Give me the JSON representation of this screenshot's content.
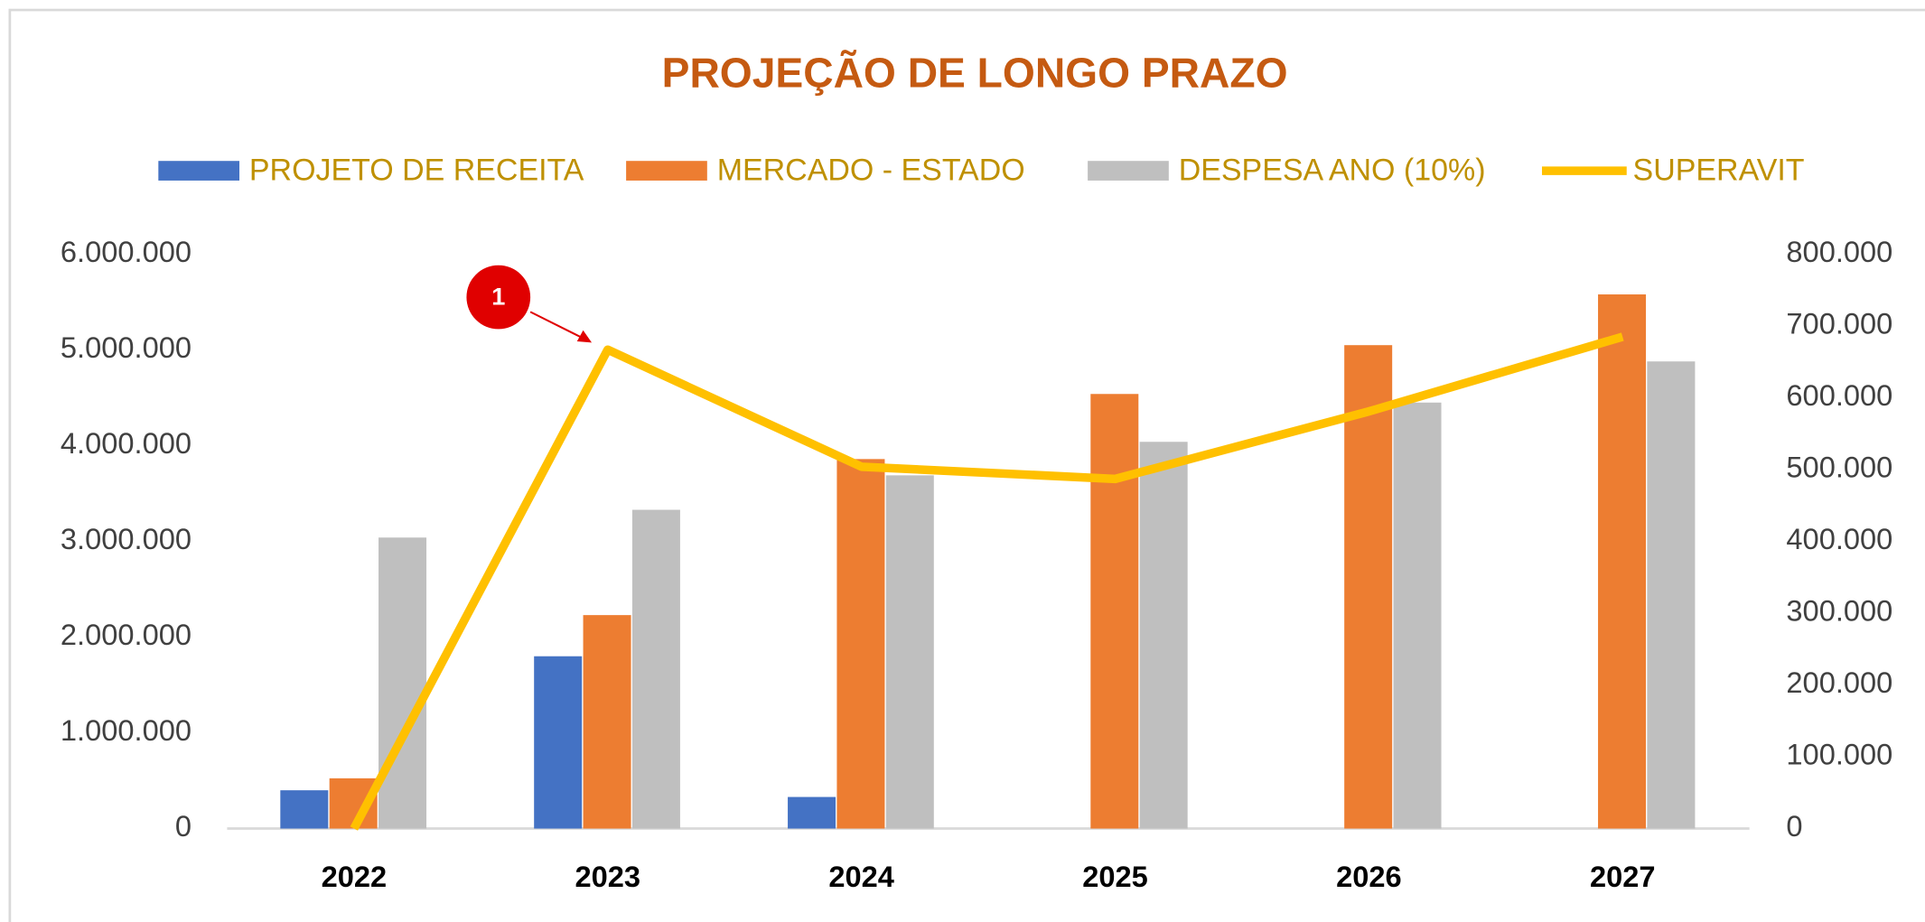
{
  "chart_data": {
    "type": "bar",
    "title": "PROJEÇÃO DE LONGO PRAZO",
    "annotation": "1",
    "categories": [
      "2022",
      "2023",
      "2024",
      "2025",
      "2026",
      "2027"
    ],
    "series": [
      {
        "name": "PROJETO DE RECEITA",
        "color": "#4472c4",
        "values": [
          400000,
          1800000,
          330000,
          0,
          0,
          0
        ]
      },
      {
        "name": "MERCADO - ESTADO",
        "color": "#ed7d31",
        "values": [
          525000,
          2230000,
          3860000,
          4540000,
          5050000,
          5580000
        ]
      },
      {
        "name": "DESPESA ANO (10%)",
        "color": "#bfbfbf",
        "values": [
          3040000,
          3330000,
          3690000,
          4040000,
          4450000,
          4880000
        ]
      },
      {
        "name": "SUPERAVIT",
        "color": "#ffc000",
        "type": "line",
        "axis": "y2",
        "values": [
          0,
          667000,
          504000,
          487000,
          581000,
          685000
        ]
      }
    ],
    "ylim": [
      0,
      6000000
    ],
    "yticks": [
      0,
      {
        "value": 1000000,
        "label": "1.000.000"
      },
      {
        "value": 2000000,
        "label": "2.000.000"
      },
      {
        "value": 3000000,
        "label": "3.000.000"
      },
      {
        "value": 4000000,
        "label": "4.000.000"
      },
      {
        "value": 5000000,
        "label": "5.000.000"
      },
      {
        "value": 6000000,
        "label": "6.000.000"
      }
    ],
    "y2lim": [
      0,
      800000
    ],
    "y2ticks": [
      0,
      {
        "value": 100000,
        "label": "100.000"
      },
      {
        "value": 200000,
        "label": "200.000"
      },
      {
        "value": 300000,
        "label": "300.000"
      },
      {
        "value": 400000,
        "label": "400.000"
      },
      {
        "value": 500000,
        "label": "500.000"
      },
      {
        "value": 600000,
        "label": "600.000"
      },
      {
        "value": 700000,
        "label": "700.000"
      },
      {
        "value": 800000,
        "label": "800.000"
      }
    ],
    "legend": "top",
    "grid": false
  }
}
